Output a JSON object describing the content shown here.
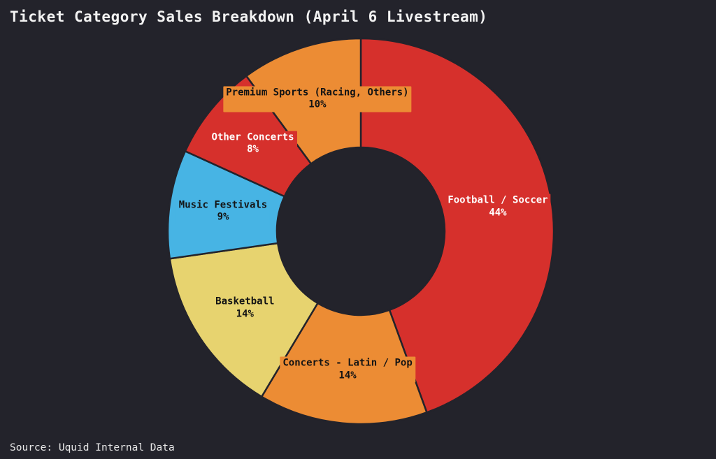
{
  "page": {
    "background": "#23232b"
  },
  "chart_data": {
    "type": "pie",
    "subtype": "donut",
    "title": "Ticket Category Sales Breakdown (April 6 Livestream)",
    "source": "Source: Uquid Internal Data",
    "start_angle_deg": 0,
    "direction": "clockwise",
    "legend": "none",
    "slices": [
      {
        "label": "Football / Soccer",
        "value": 44,
        "pct_label": "44%",
        "color": "#d6302c",
        "text_color": "#ffffff"
      },
      {
        "label": "Concerts - Latin / Pop",
        "value": 14,
        "pct_label": "14%",
        "color": "#ec8c34",
        "text_color": "#141414"
      },
      {
        "label": "Basketball",
        "value": 14,
        "pct_label": "14%",
        "color": "#e7d36f",
        "text_color": "#141414"
      },
      {
        "label": "Music Festivals",
        "value": 9,
        "pct_label": "9%",
        "color": "#47b4e4",
        "text_color": "#141414"
      },
      {
        "label": "Other Concerts",
        "value": 8,
        "pct_label": "8%",
        "color": "#d6302c",
        "text_color": "#ffffff"
      },
      {
        "label": "Premium Sports (Racing, Others)",
        "value": 10,
        "pct_label": "10%",
        "color": "#ec8c34",
        "text_color": "#141414"
      }
    ]
  }
}
